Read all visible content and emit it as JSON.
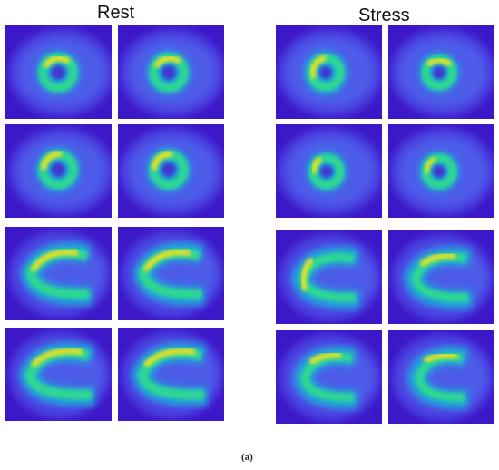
{
  "headings": {
    "rest": "Rest",
    "stress": "Stress"
  },
  "caption": "(a)",
  "colors": {
    "background_field": "#3d18c8",
    "low": "#3f2bd8",
    "mid": "#1aa8d8",
    "high": "#2ed890",
    "peak": "#f0e020"
  }
}
